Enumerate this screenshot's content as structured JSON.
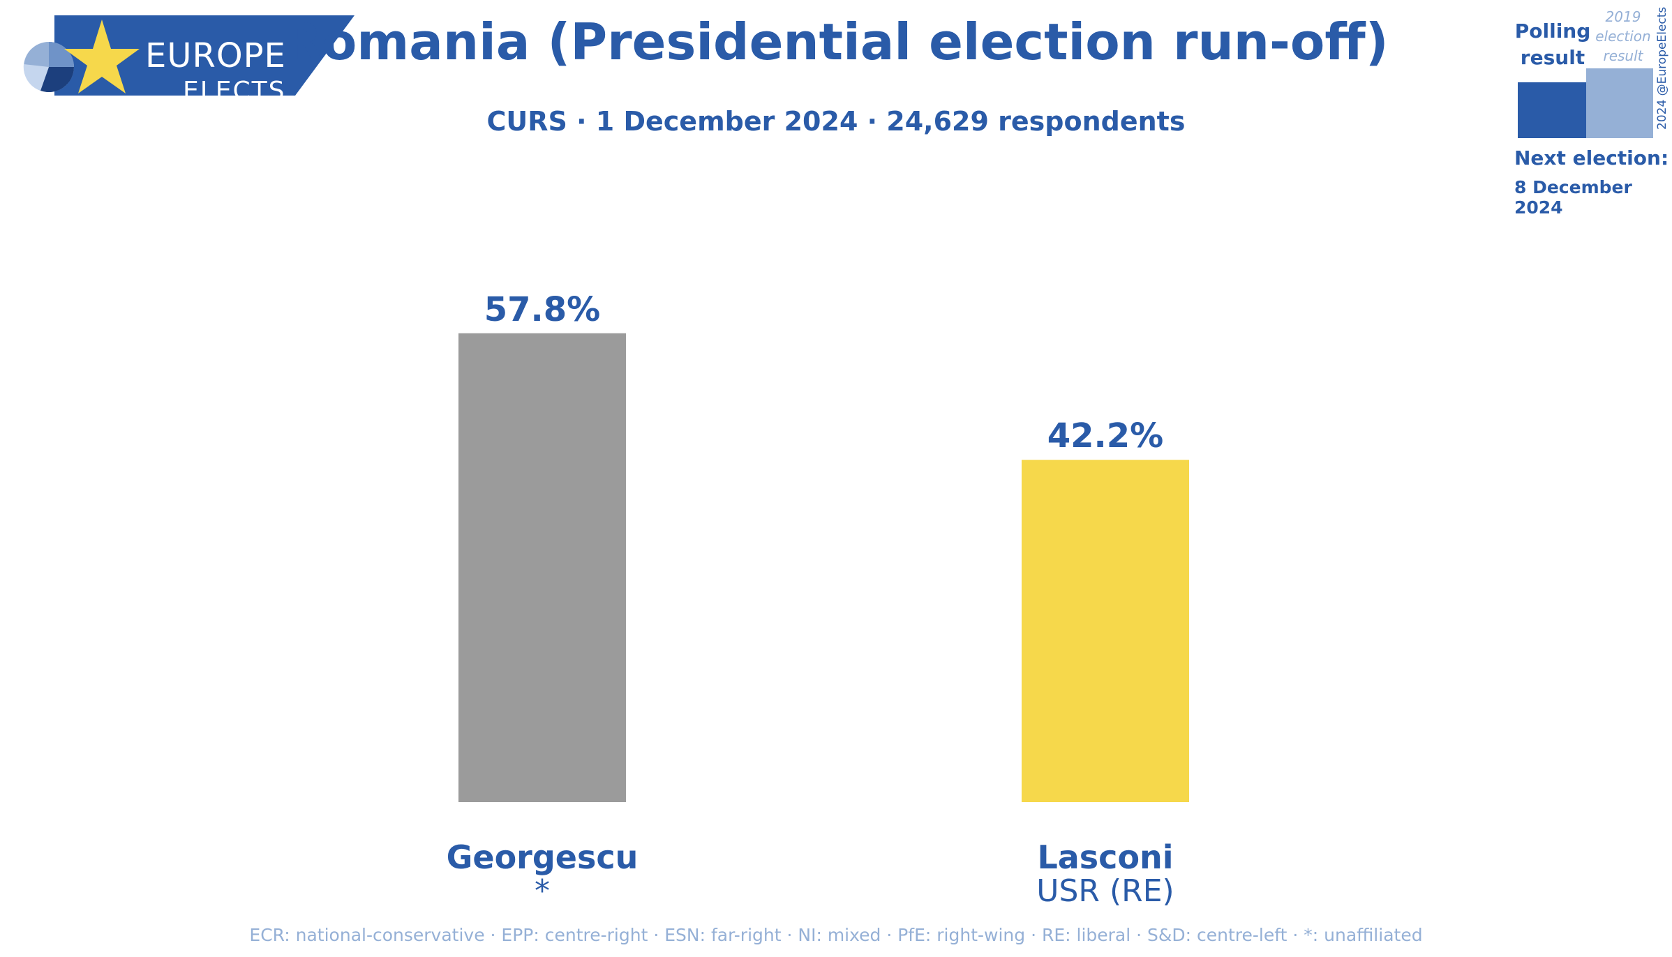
{
  "header": {
    "logo_line1": "EUROPE",
    "logo_line2": "ELECTS",
    "title": "Romania (Presidential election run-off)",
    "subtitle": "CURS · 1 December 2024 · 24,629 respondents"
  },
  "legend": {
    "polling_label": "Polling result",
    "election_label": "2019 election result",
    "copyright": "2024 @EuropeElects",
    "next_election_label": "Next election:",
    "next_election_date": "8 December 2024"
  },
  "chart_data": {
    "type": "bar",
    "title": "Romania (Presidential election run-off)",
    "categories": [
      "Georgescu",
      "Lasconi"
    ],
    "parties": [
      "*",
      "USR (RE)"
    ],
    "values": [
      57.8,
      42.2
    ],
    "value_labels": [
      "57.8%",
      "42.2%"
    ],
    "colors": [
      "#9b9b9b",
      "#f6d84b"
    ],
    "ylim": [
      0,
      60
    ],
    "grid": false
  },
  "footnote": "ECR: national-conservative · EPP: centre-right · ESN: far-right · NI: mixed · PfE: right-wing · RE: liberal · S&D: centre-left · *: unaffiliated",
  "colors": {
    "brand_blue": "#2a5ba8",
    "light_blue": "#95b0d6",
    "star_yellow": "#f6d84b"
  }
}
